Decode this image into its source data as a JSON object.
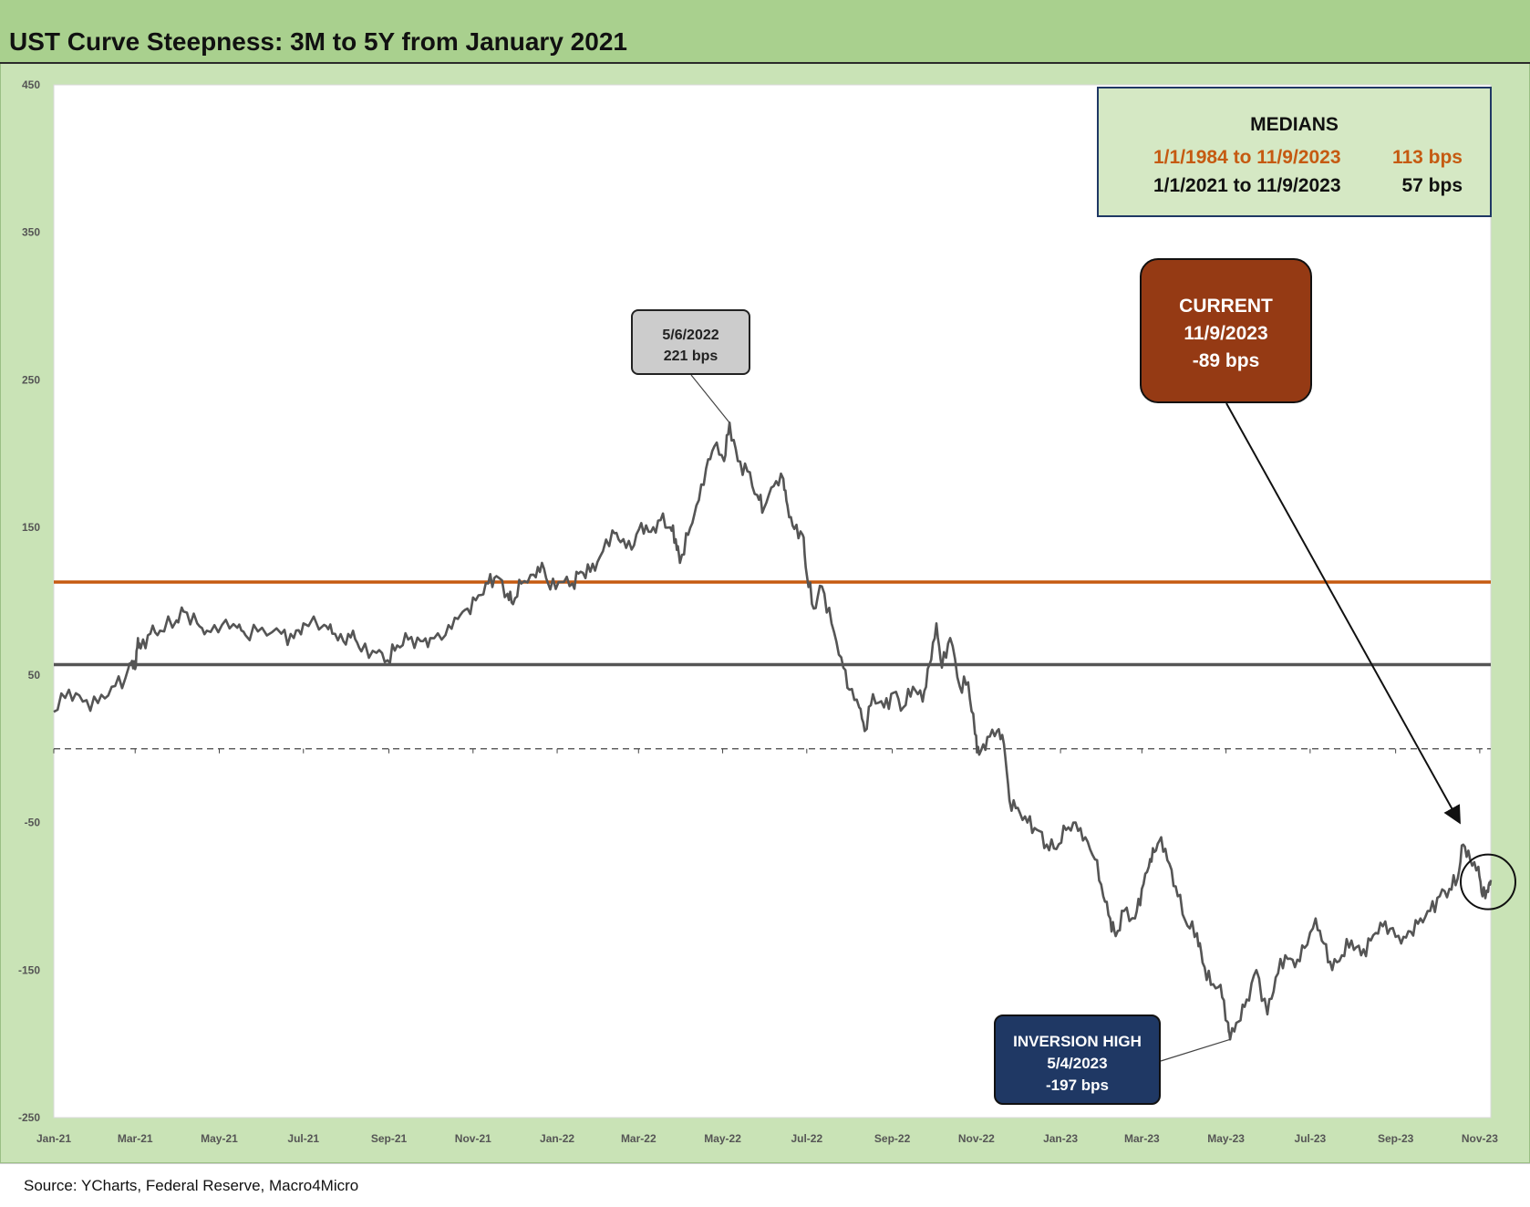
{
  "title": "UST Curve Steepness: 3M to 5Y from January 2021",
  "source": "Source: YCharts, Federal Reserve, Macro4Micro",
  "medians": {
    "heading": "MEDIANS",
    "rows": [
      {
        "range": "1/1/1984 to 11/9/2023",
        "value": "113 bps",
        "color": "#c55a11"
      },
      {
        "range": "1/1/2021 to 11/9/2023",
        "value": "57 bps",
        "color": "#111111"
      }
    ]
  },
  "callouts": {
    "peak": {
      "date": "5/6/2022",
      "value": "221 bps"
    },
    "current": {
      "label": "CURRENT",
      "date": "11/9/2023",
      "value": "-89 bps"
    },
    "inversion": {
      "label": "INVERSION HIGH",
      "date": "5/4/2023",
      "value": "-197 bps"
    }
  },
  "chart_data": {
    "type": "line",
    "title": "UST Curve Steepness: 3M to 5Y from January 2021",
    "xlabel": "",
    "ylabel": "",
    "ylim": [
      -250,
      450
    ],
    "yticks": [
      450,
      350,
      250,
      150,
      50,
      -50,
      -150,
      -250
    ],
    "xlim": [
      "2021-01-01",
      "2023-11-09"
    ],
    "xticks": [
      {
        "label": "Jan-21",
        "date": "2021-01-01"
      },
      {
        "label": "Mar-21",
        "date": "2021-03-01"
      },
      {
        "label": "May-21",
        "date": "2021-05-01"
      },
      {
        "label": "Jul-21",
        "date": "2021-07-01"
      },
      {
        "label": "Sep-21",
        "date": "2021-09-01"
      },
      {
        "label": "Nov-21",
        "date": "2021-11-01"
      },
      {
        "label": "Jan-22",
        "date": "2022-01-01"
      },
      {
        "label": "Mar-22",
        "date": "2022-03-01"
      },
      {
        "label": "May-22",
        "date": "2022-05-01"
      },
      {
        "label": "Jul-22",
        "date": "2022-07-01"
      },
      {
        "label": "Sep-22",
        "date": "2022-09-01"
      },
      {
        "label": "Nov-22",
        "date": "2022-11-01"
      },
      {
        "label": "Jan-23",
        "date": "2023-01-01"
      },
      {
        "label": "Mar-23",
        "date": "2023-03-01"
      },
      {
        "label": "May-23",
        "date": "2023-05-01"
      },
      {
        "label": "Jul-23",
        "date": "2023-07-01"
      },
      {
        "label": "Sep-23",
        "date": "2023-09-01"
      },
      {
        "label": "Nov-23",
        "date": "2023-11-01"
      }
    ],
    "grid": false,
    "reference_lines": [
      {
        "value": 113,
        "color": "#c55a11"
      },
      {
        "value": 57,
        "color": "#555555"
      },
      {
        "value": 0,
        "color": "#444444",
        "dashed": true
      }
    ],
    "series": [
      {
        "color": "#555555",
        "points": [
          [
            "2021-01-01",
            25
          ],
          [
            "2021-01-12",
            40
          ],
          [
            "2021-01-22",
            32
          ],
          [
            "2021-02-02",
            31
          ],
          [
            "2021-02-12",
            42
          ],
          [
            "2021-02-22",
            48
          ],
          [
            "2021-02-26",
            58
          ],
          [
            "2021-03-01",
            54
          ],
          [
            "2021-03-03",
            75
          ],
          [
            "2021-03-05",
            68
          ],
          [
            "2021-03-12",
            78
          ],
          [
            "2021-03-19",
            80
          ],
          [
            "2021-03-31",
            87
          ],
          [
            "2021-04-05",
            93
          ],
          [
            "2021-04-15",
            85
          ],
          [
            "2021-04-22",
            80
          ],
          [
            "2021-05-03",
            84
          ],
          [
            "2021-05-14",
            82
          ],
          [
            "2021-05-20",
            77
          ],
          [
            "2021-06-01",
            82
          ],
          [
            "2021-06-15",
            78
          ],
          [
            "2021-06-24",
            75
          ],
          [
            "2021-07-01",
            85
          ],
          [
            "2021-07-16",
            84
          ],
          [
            "2021-07-22",
            78
          ],
          [
            "2021-07-30",
            73
          ],
          [
            "2021-08-06",
            80
          ],
          [
            "2021-08-12",
            66
          ],
          [
            "2021-08-23",
            65
          ],
          [
            "2021-08-31",
            60
          ],
          [
            "2021-09-07",
            70
          ],
          [
            "2021-09-15",
            74
          ],
          [
            "2021-09-24",
            73
          ],
          [
            "2021-10-01",
            75
          ],
          [
            "2021-10-12",
            77
          ],
          [
            "2021-10-21",
            88
          ],
          [
            "2021-10-28",
            95
          ],
          [
            "2021-11-05",
            104
          ],
          [
            "2021-11-12",
            112
          ],
          [
            "2021-11-18",
            117
          ],
          [
            "2021-11-26",
            105
          ],
          [
            "2021-11-30",
            98
          ],
          [
            "2021-12-06",
            112
          ],
          [
            "2021-12-15",
            118
          ],
          [
            "2021-12-21",
            126
          ],
          [
            "2021-12-27",
            108
          ],
          [
            "2022-01-04",
            113
          ],
          [
            "2022-01-12",
            112
          ],
          [
            "2022-01-18",
            120
          ],
          [
            "2022-01-25",
            120
          ],
          [
            "2022-02-01",
            130
          ],
          [
            "2022-02-10",
            148
          ],
          [
            "2022-02-16",
            140
          ],
          [
            "2022-02-24",
            135
          ],
          [
            "2022-03-03",
            153
          ],
          [
            "2022-03-10",
            147
          ],
          [
            "2022-03-17",
            155
          ],
          [
            "2022-03-24",
            150
          ],
          [
            "2022-03-28",
            142
          ],
          [
            "2022-03-31",
            126
          ],
          [
            "2022-04-06",
            145
          ],
          [
            "2022-04-12",
            165
          ],
          [
            "2022-04-19",
            190
          ],
          [
            "2022-04-25",
            205
          ],
          [
            "2022-05-02",
            195
          ],
          [
            "2022-05-06",
            221
          ],
          [
            "2022-05-12",
            195
          ],
          [
            "2022-05-19",
            188
          ],
          [
            "2022-05-26",
            172
          ],
          [
            "2022-05-31",
            163
          ],
          [
            "2022-06-07",
            178
          ],
          [
            "2022-06-14",
            183
          ],
          [
            "2022-06-17",
            165
          ],
          [
            "2022-06-22",
            149
          ],
          [
            "2022-06-28",
            145
          ],
          [
            "2022-07-01",
            118
          ],
          [
            "2022-07-06",
            95
          ],
          [
            "2022-07-12",
            110
          ],
          [
            "2022-07-19",
            85
          ],
          [
            "2022-07-26",
            62
          ],
          [
            "2022-08-01",
            40
          ],
          [
            "2022-08-08",
            28
          ],
          [
            "2022-08-12",
            12
          ],
          [
            "2022-08-18",
            37
          ],
          [
            "2022-08-26",
            28
          ],
          [
            "2022-09-02",
            38
          ],
          [
            "2022-09-09",
            28
          ],
          [
            "2022-09-16",
            42
          ],
          [
            "2022-09-23",
            32
          ],
          [
            "2022-09-28",
            57
          ],
          [
            "2022-10-03",
            85
          ],
          [
            "2022-10-07",
            55
          ],
          [
            "2022-10-13",
            75
          ],
          [
            "2022-10-20",
            42
          ],
          [
            "2022-10-26",
            45
          ],
          [
            "2022-10-31",
            10
          ],
          [
            "2022-11-03",
            -4
          ],
          [
            "2022-11-09",
            8
          ],
          [
            "2022-11-16",
            12
          ],
          [
            "2022-11-21",
            3
          ],
          [
            "2022-11-25",
            -35
          ],
          [
            "2022-12-01",
            -40
          ],
          [
            "2022-12-08",
            -50
          ],
          [
            "2022-12-15",
            -55
          ],
          [
            "2022-12-22",
            -65
          ],
          [
            "2022-12-29",
            -68
          ],
          [
            "2023-01-05",
            -55
          ],
          [
            "2023-01-12",
            -50
          ],
          [
            "2023-01-19",
            -60
          ],
          [
            "2023-01-26",
            -75
          ],
          [
            "2023-02-01",
            -100
          ],
          [
            "2023-02-06",
            -115
          ],
          [
            "2023-02-10",
            -127
          ],
          [
            "2023-02-16",
            -110
          ],
          [
            "2023-02-24",
            -115
          ],
          [
            "2023-03-01",
            -95
          ],
          [
            "2023-03-06",
            -80
          ],
          [
            "2023-03-10",
            -70
          ],
          [
            "2023-03-15",
            -60
          ],
          [
            "2023-03-21",
            -78
          ],
          [
            "2023-03-27",
            -100
          ],
          [
            "2023-04-03",
            -120
          ],
          [
            "2023-04-10",
            -125
          ],
          [
            "2023-04-14",
            -145
          ],
          [
            "2023-04-20",
            -160
          ],
          [
            "2023-04-27",
            -160
          ],
          [
            "2023-05-02",
            -185
          ],
          [
            "2023-05-04",
            -197
          ],
          [
            "2023-05-10",
            -185
          ],
          [
            "2023-05-16",
            -170
          ],
          [
            "2023-05-23",
            -150
          ],
          [
            "2023-05-31",
            -180
          ],
          [
            "2023-06-06",
            -155
          ],
          [
            "2023-06-13",
            -140
          ],
          [
            "2023-06-20",
            -148
          ],
          [
            "2023-06-27",
            -135
          ],
          [
            "2023-07-05",
            -115
          ],
          [
            "2023-07-11",
            -132
          ],
          [
            "2023-07-17",
            -150
          ],
          [
            "2023-07-24",
            -140
          ],
          [
            "2023-07-31",
            -130
          ],
          [
            "2023-08-07",
            -140
          ],
          [
            "2023-08-14",
            -130
          ],
          [
            "2023-08-21",
            -118
          ],
          [
            "2023-08-28",
            -122
          ],
          [
            "2023-09-05",
            -132
          ],
          [
            "2023-09-12",
            -124
          ],
          [
            "2023-09-19",
            -115
          ],
          [
            "2023-09-26",
            -110
          ],
          [
            "2023-10-03",
            -100
          ],
          [
            "2023-10-10",
            -95
          ],
          [
            "2023-10-16",
            -88
          ],
          [
            "2023-10-20",
            -65
          ],
          [
            "2023-10-25",
            -75
          ],
          [
            "2023-10-31",
            -80
          ],
          [
            "2023-11-03",
            -100
          ],
          [
            "2023-11-07",
            -97
          ],
          [
            "2023-11-09",
            -89
          ]
        ]
      }
    ]
  }
}
